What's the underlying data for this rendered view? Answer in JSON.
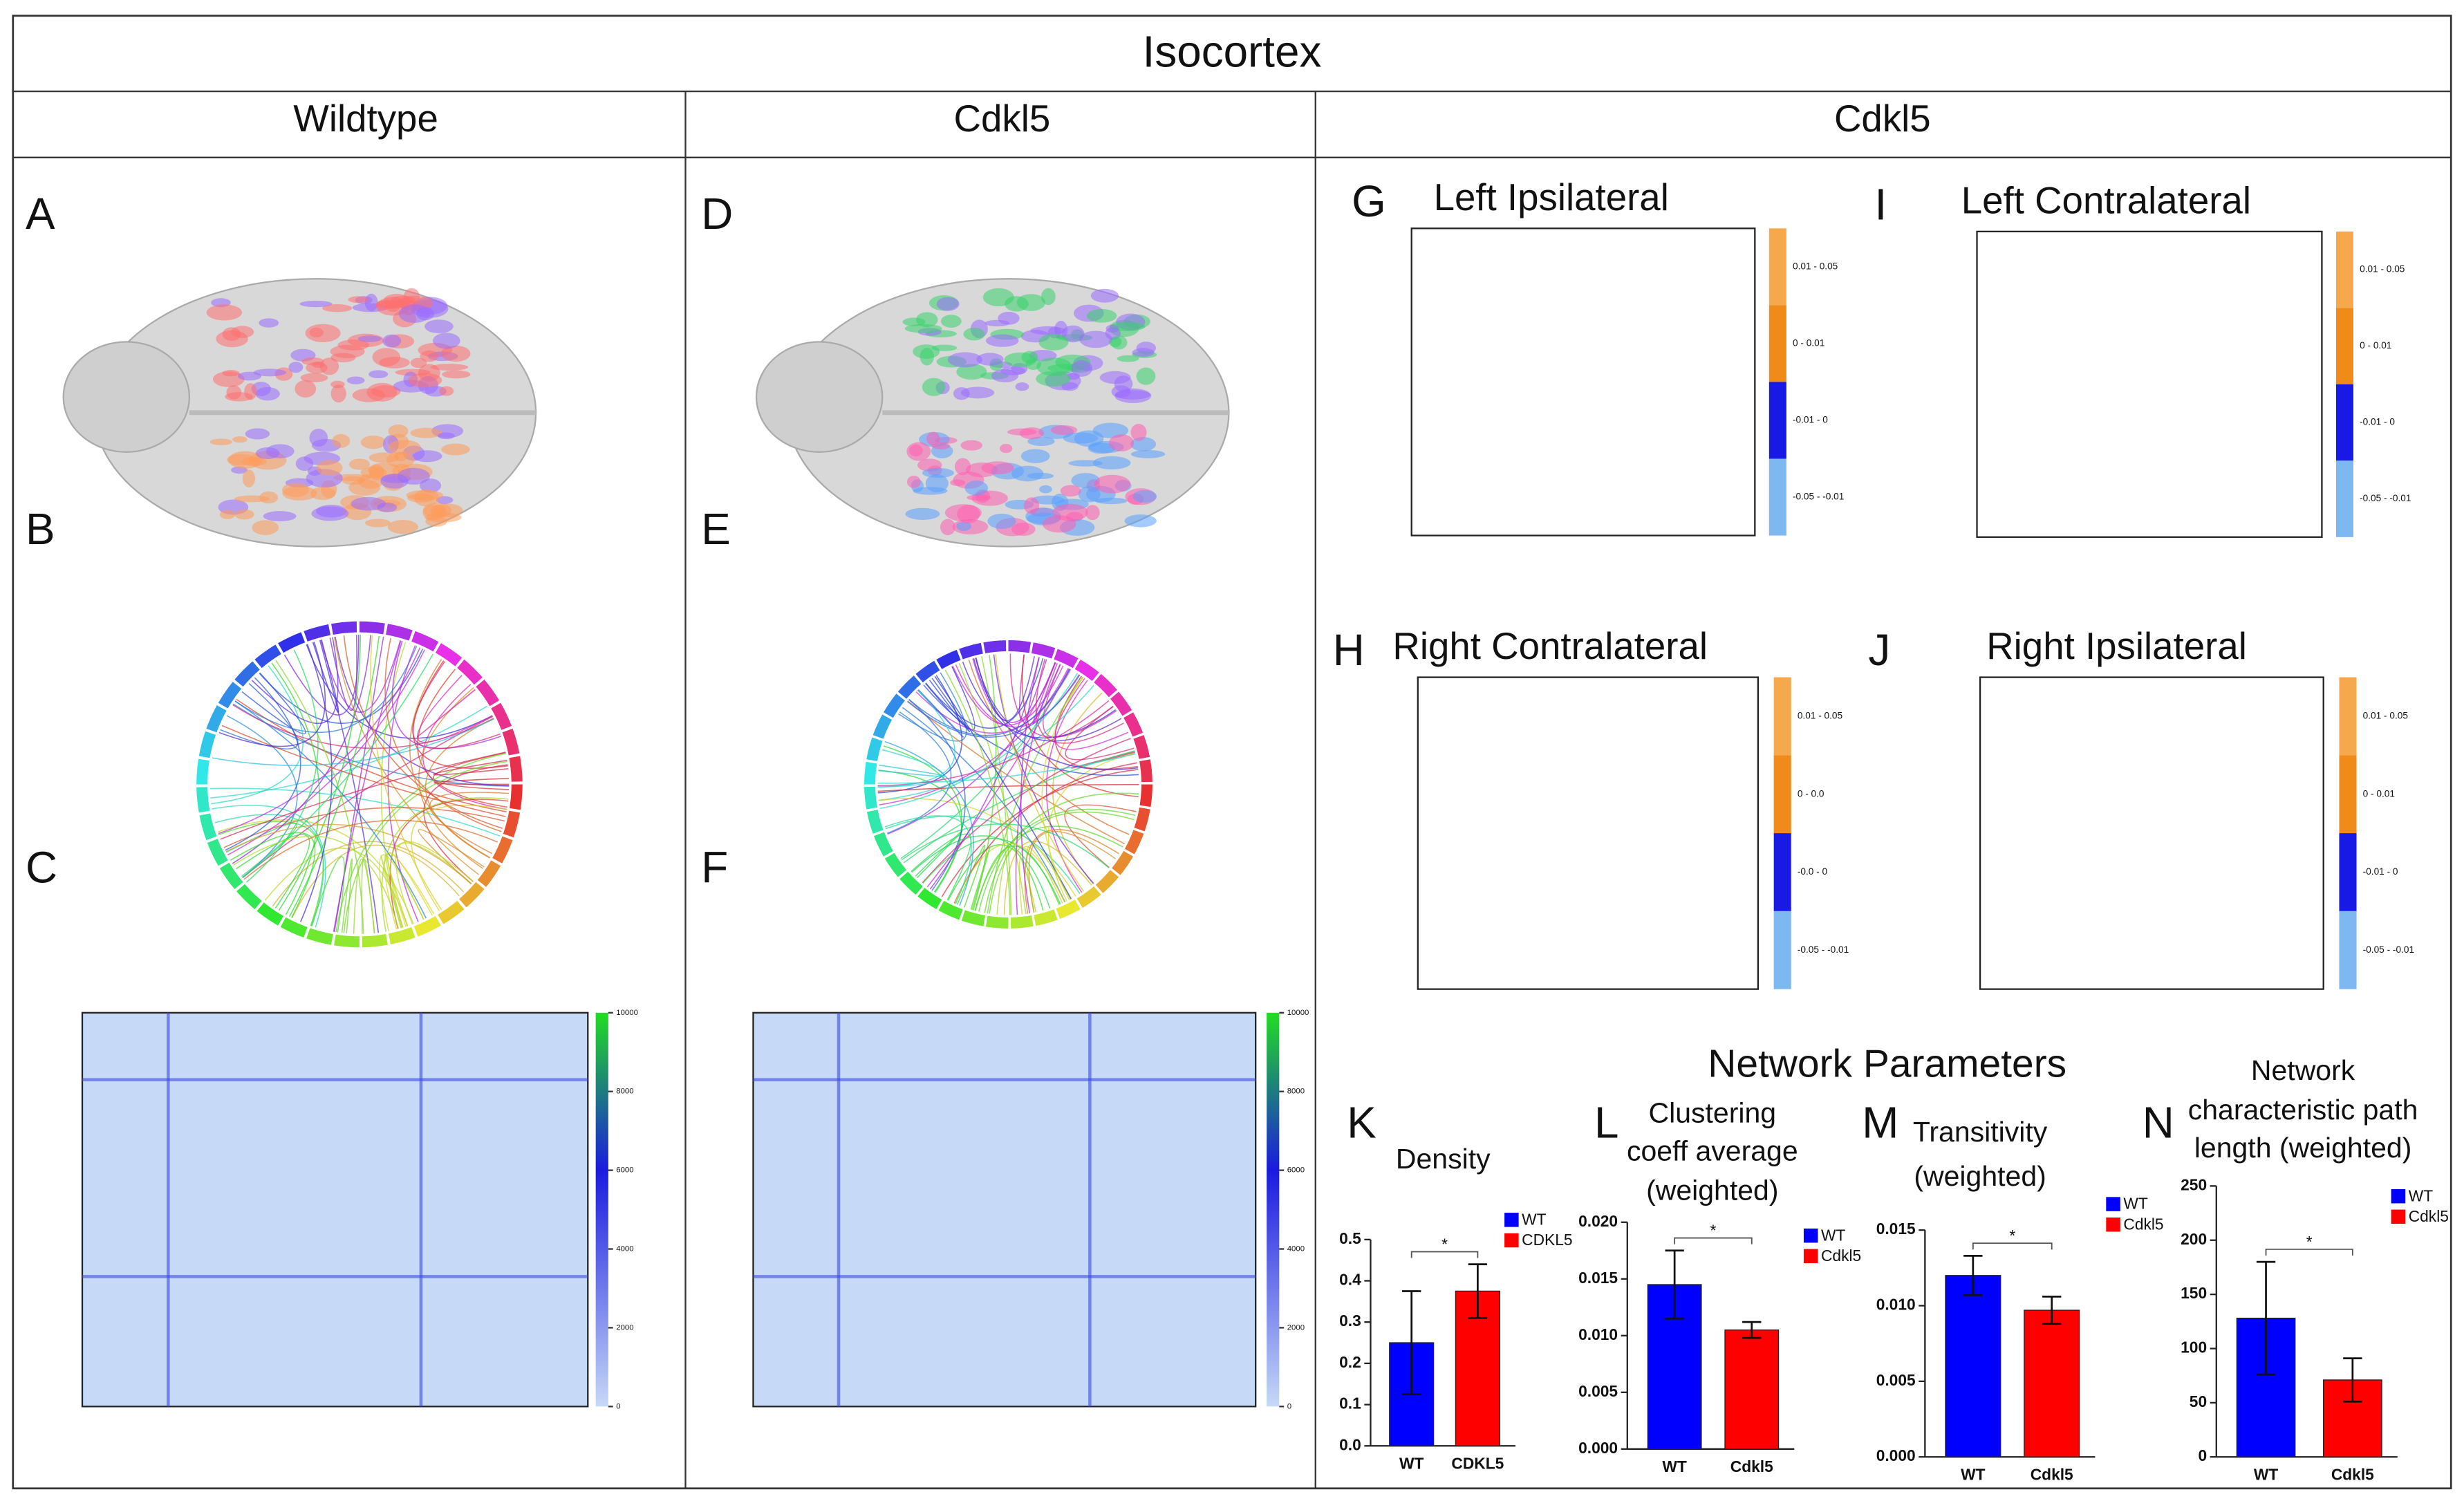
{
  "header": {
    "title": "Isocortex",
    "columns": [
      "Wildtype",
      "Cdkl5",
      "Cdkl5"
    ]
  },
  "panel_letters": [
    "A",
    "B",
    "C",
    "D",
    "E",
    "F"
  ],
  "matrix_colorbar_ticks": [
    0,
    2000,
    4000,
    6000,
    8000,
    10000
  ],
  "heatmaps": [
    {
      "letter": "G",
      "title": "Left Ipsilateral",
      "scale_labels": [
        "0.01 - 0.05",
        "0 - 0.01",
        "-0.01 - 0",
        "-0.05 - -0.01"
      ]
    },
    {
      "letter": "I",
      "title": "Left Contralateral",
      "scale_labels": [
        "0.01 - 0.05",
        "0 - 0.01",
        "-0.01 - 0",
        "-0.05 - -0.01"
      ]
    },
    {
      "letter": "H",
      "title": "Right Contralateral",
      "scale_labels": [
        "0.01 - 0.05",
        "0 - 0.0",
        "-0.0 - 0",
        "-0.05 - -0.01"
      ]
    },
    {
      "letter": "J",
      "title": "Right Ipsilateral",
      "scale_labels": [
        "0.01 - 0.05",
        "0 - 0.01",
        "-0.01 - 0",
        "-0.05 - -0.01"
      ]
    }
  ],
  "network_title": "Network Parameters",
  "chart_data": [
    {
      "type": "bar",
      "letter": "K",
      "title": [
        "Density"
      ],
      "categories": [
        "WT",
        "CDKL5"
      ],
      "values": [
        0.25,
        0.375
      ],
      "errors": [
        0.125,
        0.065
      ],
      "colors": [
        "#0000ff",
        "#ff0000"
      ],
      "annotation": "*",
      "ylim": [
        0,
        0.5
      ],
      "yticks": [
        {
          "value": 0,
          "label": "0.0"
        },
        0.1,
        0.2,
        0.3,
        0.4,
        0.5
      ]
    },
    {
      "type": "bar",
      "letter": "L",
      "title": [
        "Clustering",
        "coeff average",
        "(weighted)"
      ],
      "categories": [
        "WT",
        "Cdkl5"
      ],
      "values": [
        0.0145,
        0.0105
      ],
      "errors": [
        0.003,
        0.0007
      ],
      "colors": [
        "#0000ff",
        "#ff0000"
      ],
      "annotation": "*",
      "ylim": [
        0,
        0.02
      ],
      "yticks": [
        {
          "value": 0,
          "label": "0.000"
        },
        {
          "value": 0.005,
          "label": "0.005"
        },
        {
          "value": 0.01,
          "label": "0.010"
        },
        {
          "value": 0.015,
          "label": "0.015"
        },
        {
          "value": 0.02,
          "label": "0.020"
        }
      ]
    },
    {
      "type": "bar",
      "letter": "M",
      "title": [
        "Transitivity",
        "(weighted)"
      ],
      "categories": [
        "WT",
        "Cdkl5"
      ],
      "values": [
        0.012,
        0.0097
      ],
      "errors": [
        0.0013,
        0.0009
      ],
      "colors": [
        "#0000ff",
        "#ff0000"
      ],
      "annotation": "*",
      "ylim": [
        0,
        0.015
      ],
      "yticks": [
        {
          "value": 0,
          "label": "0.000"
        },
        {
          "value": 0.005,
          "label": "0.005"
        },
        {
          "value": 0.01,
          "label": "0.010"
        },
        {
          "value": 0.015,
          "label": "0.015"
        }
      ]
    },
    {
      "type": "bar",
      "letter": "N",
      "title": [
        "Network",
        "characteristic path",
        "length (weighted)"
      ],
      "categories": [
        "WT",
        "Cdkl5"
      ],
      "values": [
        128,
        71
      ],
      "errors": [
        52,
        20
      ],
      "colors": [
        "#0000ff",
        "#ff0000"
      ],
      "annotation": "*",
      "ylim": [
        0,
        250
      ],
      "yticks": [
        0,
        50,
        100,
        150,
        200,
        250
      ]
    }
  ]
}
